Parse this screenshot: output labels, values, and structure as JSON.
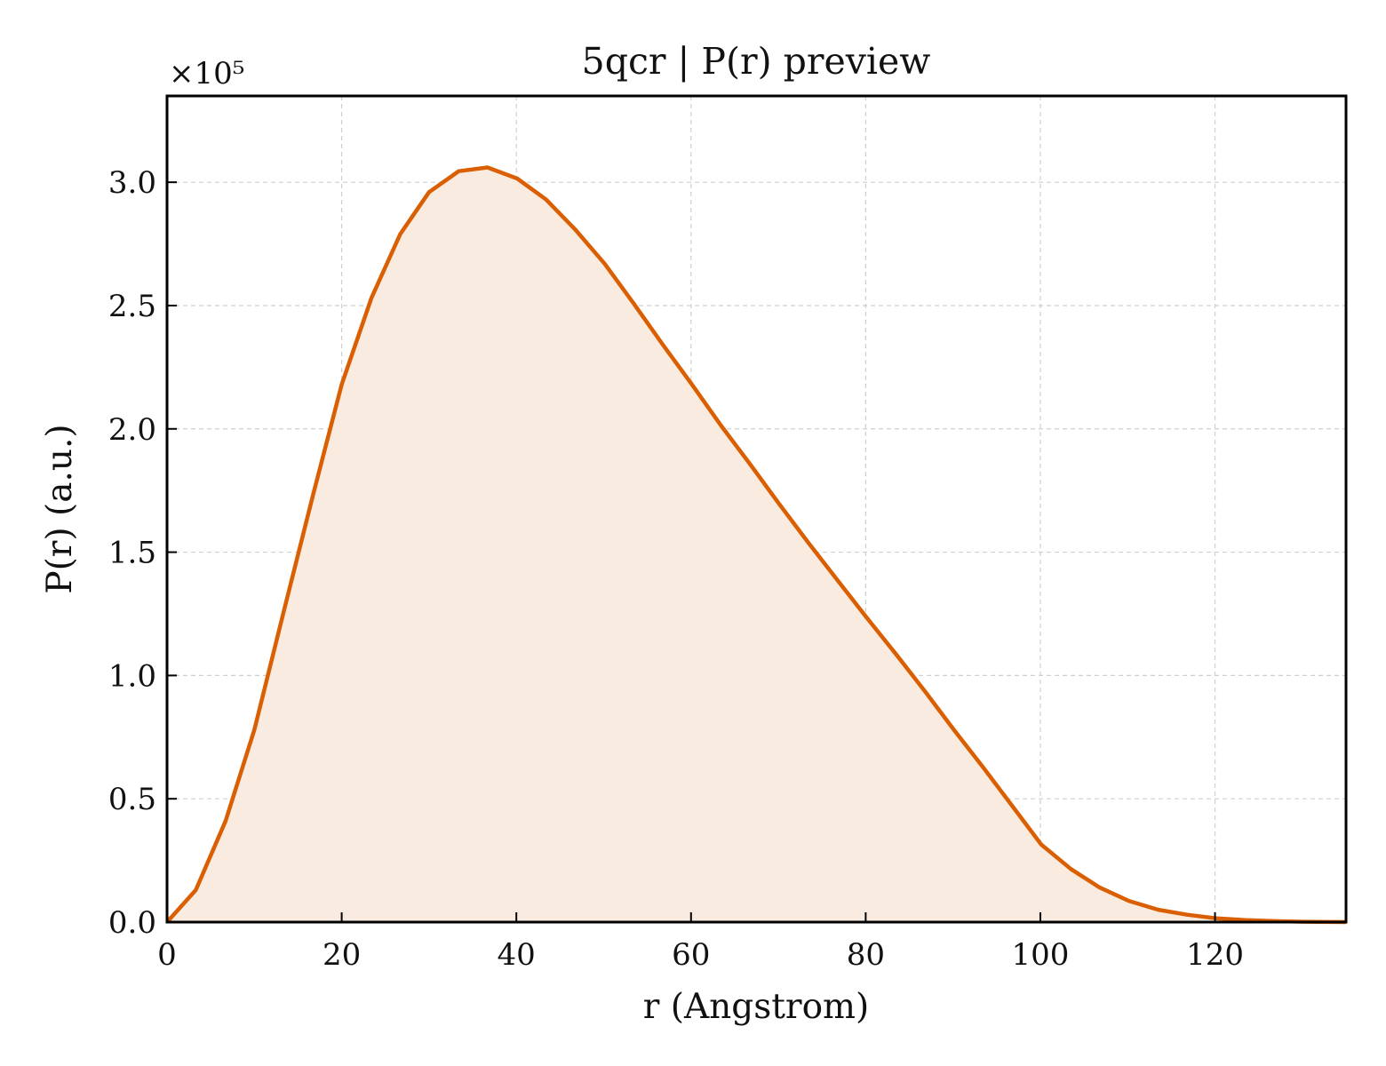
{
  "chart_data": {
    "type": "area",
    "title": "5qcr | P(r) preview",
    "xlabel": "r (Angstrom)",
    "ylabel": "P(r) (a.u.)",
    "y_multiplier_label": "×10⁵",
    "y_scale_factor": 100000,
    "xlim": [
      0,
      135
    ],
    "ylim": [
      0,
      335000
    ],
    "xticks": [
      0,
      20,
      40,
      60,
      80,
      100,
      120
    ],
    "yticks": [
      0,
      50000,
      100000,
      150000,
      200000,
      250000,
      300000
    ],
    "ytick_labels": [
      "0.0",
      "0.5",
      "1.0",
      "1.5",
      "2.0",
      "2.5",
      "3.0"
    ],
    "grid": true,
    "line_color": "#d95f02",
    "fill_color": "#f9ebe0",
    "series": [
      {
        "x": [
          0,
          3.3,
          6.7,
          10.0,
          13.3,
          16.7,
          20.0,
          23.4,
          26.7,
          30.0,
          33.4,
          36.7,
          40.1,
          43.4,
          46.7,
          50.1,
          53.4,
          56.7,
          60.1,
          63.4,
          66.8,
          70.1,
          73.4,
          76.8,
          80.1,
          83.5,
          86.8,
          90.1,
          93.5,
          96.8,
          100.1,
          103.5,
          106.8,
          110.2,
          113.5,
          116.8,
          120.2,
          123.5,
          126.8,
          130.2,
          133.5,
          135.0
        ],
        "y": [
          0,
          13000,
          41000,
          78000,
          125000,
          173000,
          218000,
          253000,
          279000,
          296000,
          304500,
          306000,
          301500,
          293000,
          281000,
          267000,
          251000,
          234500,
          218000,
          201500,
          185500,
          169500,
          154000,
          138500,
          123500,
          108500,
          93500,
          78000,
          62500,
          47000,
          31500,
          21500,
          14000,
          8500,
          5000,
          3000,
          1500,
          800,
          400,
          150,
          50,
          0
        ]
      }
    ]
  }
}
